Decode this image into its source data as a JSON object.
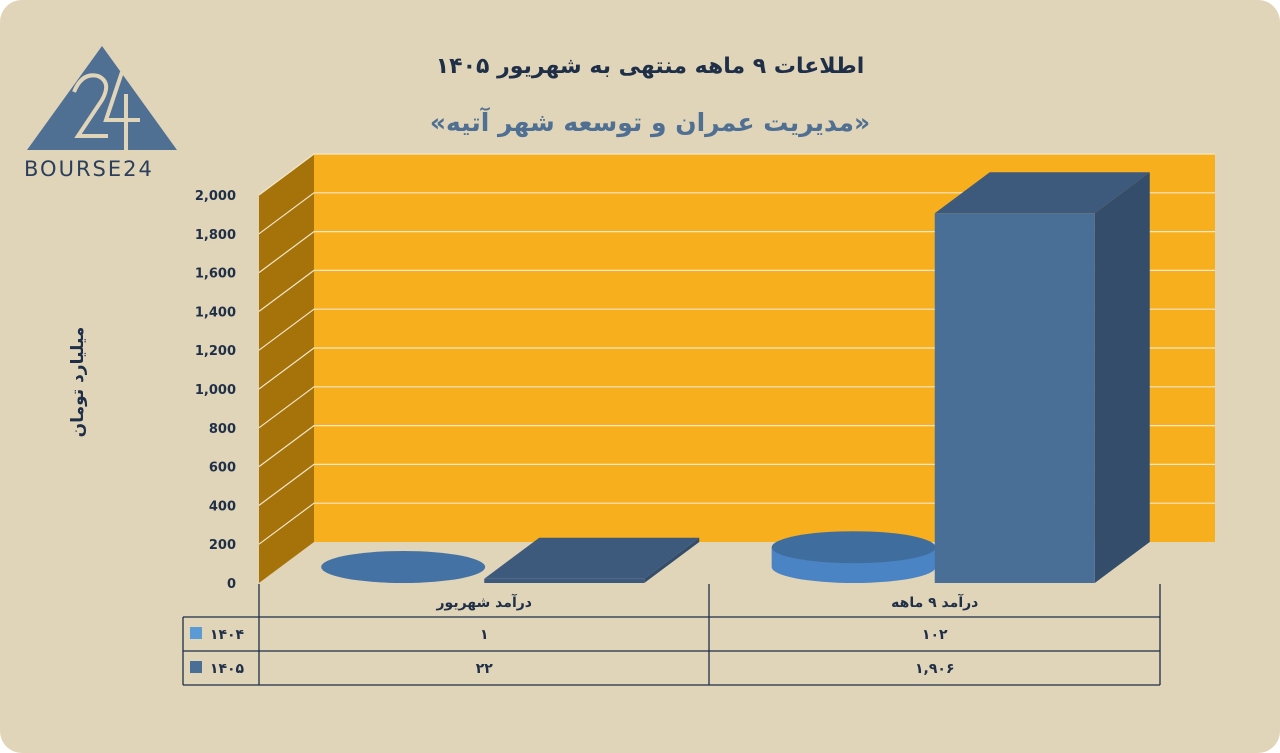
{
  "title_line1": "اطلاعات ۹ ماهه منتهی به شهریور ۱۴۰۵",
  "title_line2": "«مدیریت عمران و توسعه شهر آتیه»",
  "logo_text": "BOURSE24",
  "colors": {
    "background": "#e0d5b8",
    "plot_back": "#f7af1e",
    "plot_side": "#a6720a",
    "series_1404": "#5b9bd5",
    "series_1405": "#4a6f96",
    "text": "#1f2f48"
  },
  "chart_data": {
    "type": "bar",
    "title": "اطلاعات ۹ ماهه منتهی به شهریور ۱۴۰۵",
    "subtitle": "«مدیریت عمران و توسعه شهر آتیه»",
    "ylabel": "میلیارد تومان",
    "ylim": [
      0,
      2000
    ],
    "yticks": [
      0,
      200,
      400,
      600,
      800,
      1000,
      1200,
      1400,
      1600,
      1800,
      2000
    ],
    "ytick_labels": [
      "0",
      "200",
      "400",
      "600",
      "800",
      "1,000",
      "1,200",
      "1,400",
      "1,600",
      "1,800",
      "2,000"
    ],
    "categories": [
      "درآمد  شهریور",
      "درآمد ۹ ماهه"
    ],
    "series": [
      {
        "name": "۱۴۰۴",
        "values": [
          1,
          102
        ],
        "value_labels": [
          "۱",
          "۱۰۲"
        ],
        "shape": "cylinder"
      },
      {
        "name": "۱۴۰۵",
        "values": [
          22,
          1906
        ],
        "value_labels": [
          "۲۲",
          "۱,۹۰۶"
        ],
        "shape": "box"
      }
    ],
    "grid": true,
    "legend": "data-table"
  }
}
